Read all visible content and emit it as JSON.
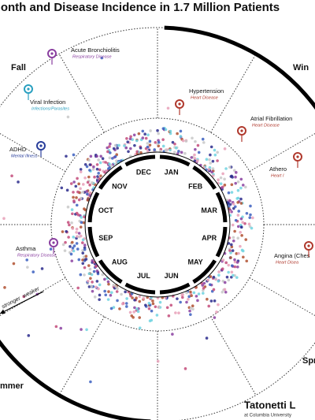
{
  "title": "onth and Disease Incidence in 1.7 Million Patients",
  "seasons": [
    "Fall",
    "Win",
    "mmer",
    "Spr"
  ],
  "months": [
    "JAN",
    "FEB",
    "MAR",
    "APR",
    "MAY",
    "JUN",
    "JUL",
    "AUG",
    "SEP",
    "OCT",
    "NOV",
    "DEC"
  ],
  "diseases": [
    {
      "name": "Acute Bronchiolitis",
      "category": "Respiratory Disease"
    },
    {
      "name": "Viral Infection",
      "category": "Infections/Parasites"
    },
    {
      "name": "ADHD",
      "category": "Mental Illness"
    },
    {
      "name": "Asthma",
      "category": "Respiratory Disease"
    },
    {
      "name": "Hypertension",
      "category": "Heart Disease"
    },
    {
      "name": "Atrial Fibrillation",
      "category": "Heart Disease"
    },
    {
      "name": "Athero",
      "category": "Heart I"
    },
    {
      "name": "Angina (Ches",
      "category": "Heart Disea"
    }
  ],
  "scale": {
    "stronger": "stronger",
    "weaker": "weaker"
  },
  "credit": {
    "name": "Tatonetti L",
    "affiliation": "at Columbia University"
  }
}
